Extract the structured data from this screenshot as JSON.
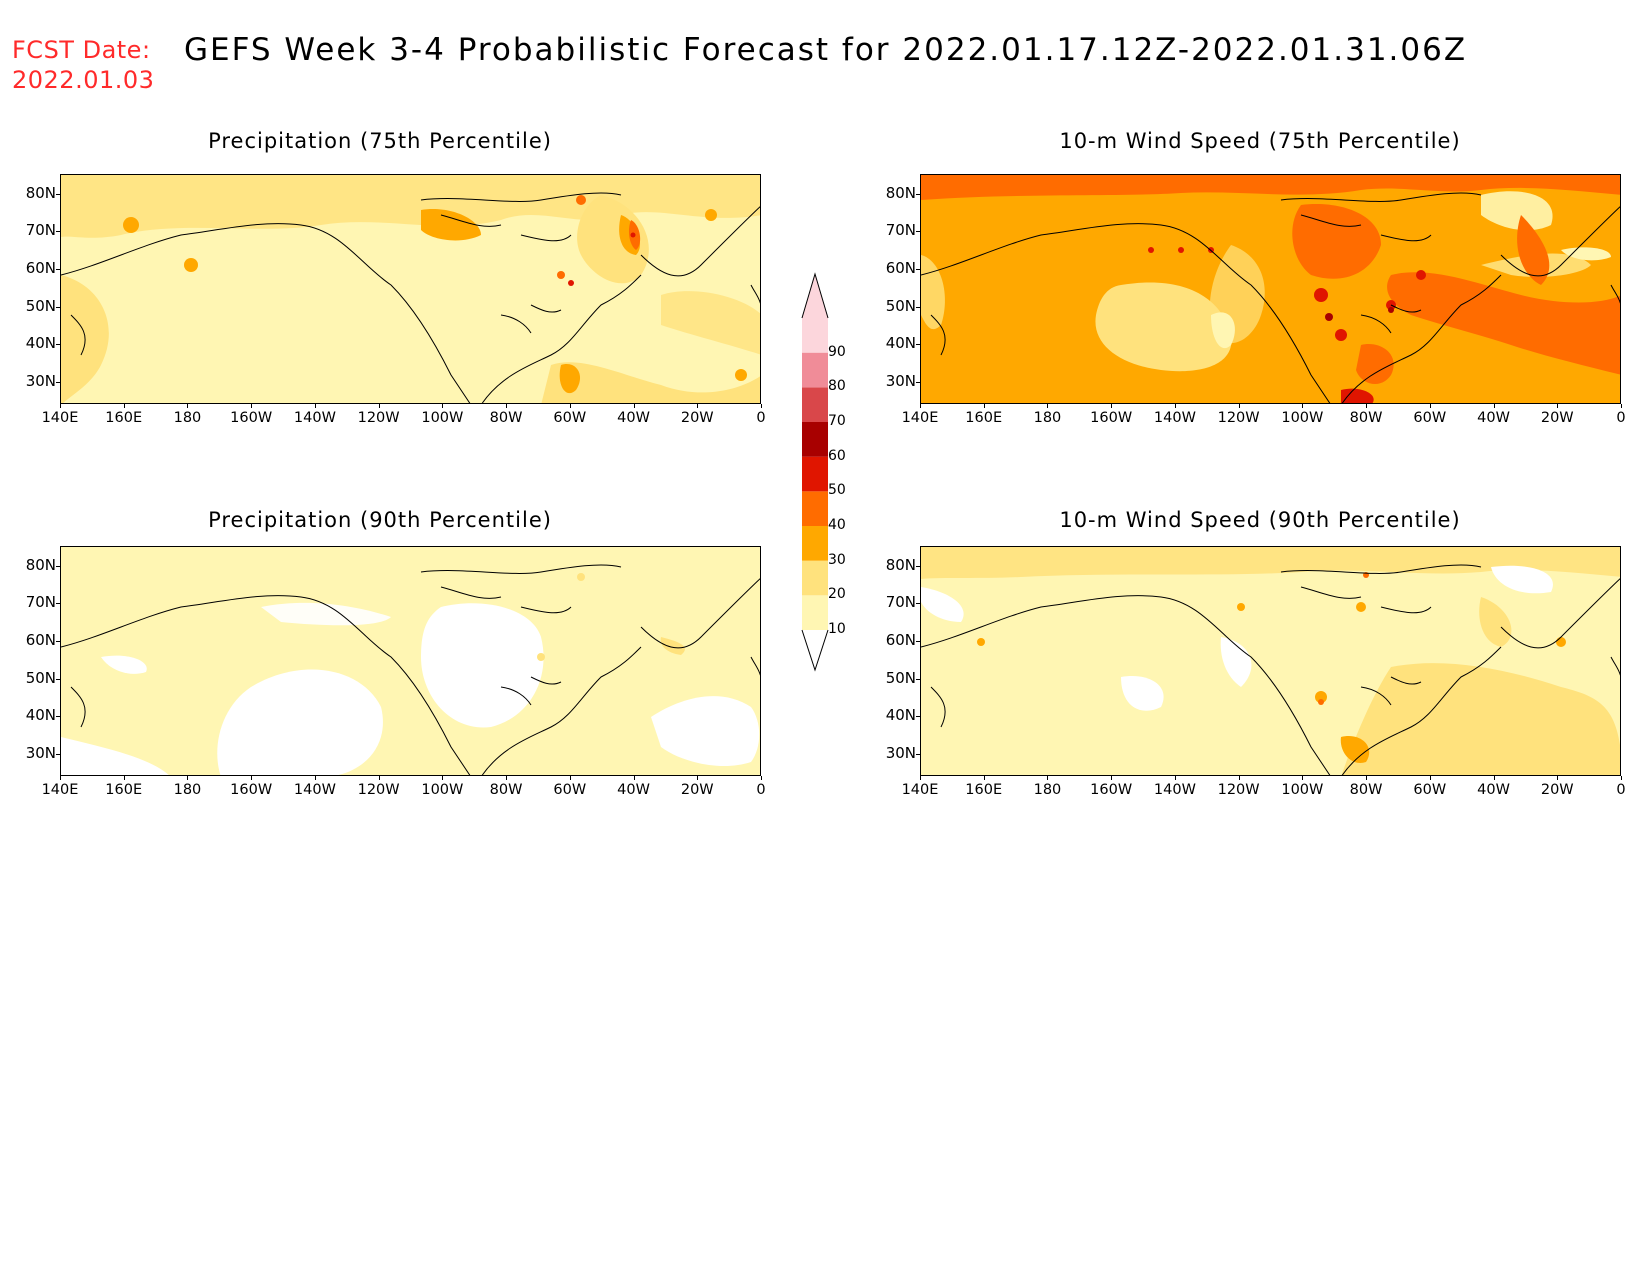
{
  "header": {
    "fcst_label": "FCST Date:",
    "fcst_date": "2022.01.03",
    "title": "GEFS Week 3-4 Probabilistic Forecast for 2022.01.17.12Z-2022.01.31.06Z"
  },
  "panels": [
    {
      "id": "precip-75",
      "title": "Precipitation (75th Percentile)",
      "dominant_category": "10-20",
      "hotspots": [
        "20-30",
        "30-40",
        "50-60"
      ]
    },
    {
      "id": "wind-75",
      "title": "10-m Wind Speed (75th Percentile)",
      "dominant_category": "30-40",
      "hotspots": [
        "40-50",
        "50-60",
        "60-70"
      ]
    },
    {
      "id": "precip-90",
      "title": "Precipitation (90th Percentile)",
      "dominant_category": "10-20",
      "hotspots": [
        "0-10",
        "20-30"
      ]
    },
    {
      "id": "wind-90",
      "title": "10-m Wind Speed (90th Percentile)",
      "dominant_category": "10-20",
      "hotspots": [
        "20-30",
        "30-40",
        "40-50"
      ]
    }
  ],
  "axes": {
    "lat_labels": [
      "80N",
      "70N",
      "60N",
      "50N",
      "40N",
      "30N"
    ],
    "lon_labels": [
      "140E",
      "160E",
      "180",
      "160W",
      "140W",
      "120W",
      "100W",
      "80W",
      "60W",
      "40W",
      "20W",
      "0"
    ]
  },
  "colorbar": {
    "levels": [
      "10",
      "20",
      "30",
      "40",
      "50",
      "60",
      "70",
      "80",
      "90"
    ],
    "colors": [
      "#ffffff",
      "#fff6b3",
      "#ffe27d",
      "#ffa800",
      "#ff6c00",
      "#e01500",
      "#a80000",
      "#d9474a",
      "#f08c98",
      "#fcd6dc"
    ]
  }
}
